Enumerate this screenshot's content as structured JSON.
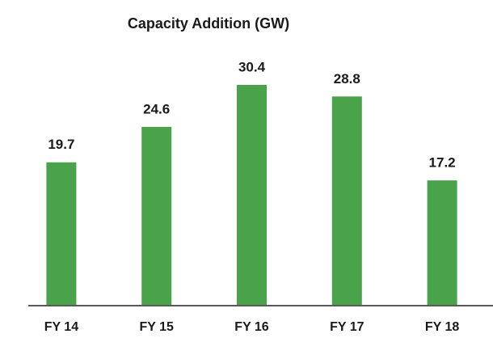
{
  "chart_data": {
    "type": "bar",
    "title": "Capacity Addition (GW)",
    "categories": [
      "FY 14",
      "FY 15",
      "FY 16",
      "FY 17",
      "FY 18"
    ],
    "values": [
      19.7,
      24.6,
      30.4,
      28.8,
      17.2
    ],
    "color": "#4aa24a"
  }
}
